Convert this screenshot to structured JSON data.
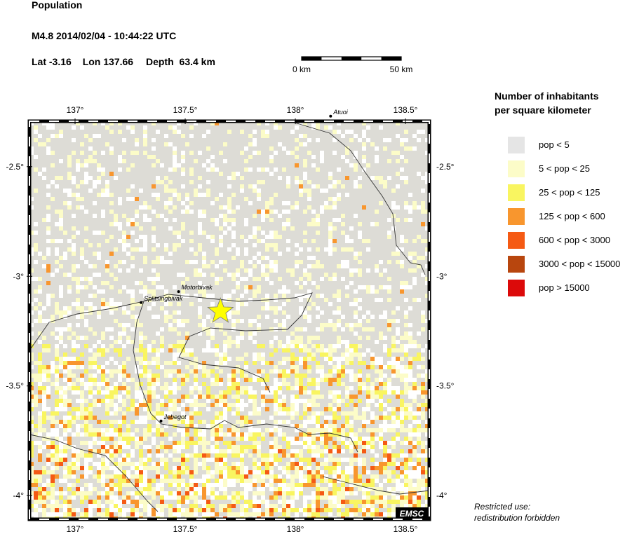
{
  "header": {
    "title": "Population",
    "event_line": "M4.8  2014/02/04 - 10:44:22 UTC"
  },
  "event": {
    "lat_label": "Lat",
    "lat": -3.16,
    "lon_label": "Lon",
    "lon": 137.66,
    "depth_label": "Depth",
    "depth": 63.4,
    "depth_unit": "km"
  },
  "scale_bar": {
    "start_label": "0 km",
    "end_label": "50 km"
  },
  "map": {
    "xlim": [
      136.793,
      138.608
    ],
    "ylim": [
      -4.108,
      -2.293
    ],
    "xticks": [
      {
        "value": 137,
        "label": "137°"
      },
      {
        "value": 137.5,
        "label": "137.5°"
      },
      {
        "value": 138,
        "label": "138°"
      },
      {
        "value": 138.5,
        "label": "138.5°"
      }
    ],
    "yticks": [
      {
        "value": -2.5,
        "label": "-2.5°"
      },
      {
        "value": -3,
        "label": "-3°"
      },
      {
        "value": -3.5,
        "label": "-3.5°"
      },
      {
        "value": -4,
        "label": "-4°"
      }
    ],
    "cities": [
      {
        "name": "Atuoi",
        "lon": 138.16,
        "lat": -2.27
      },
      {
        "name": "Motorbivak",
        "lon": 137.47,
        "lat": -3.07
      },
      {
        "name": "Splitsingbivak",
        "lon": 137.3,
        "lat": -3.12
      },
      {
        "name": "Jebegot",
        "lon": 137.39,
        "lat": -3.66
      }
    ],
    "badge": "EMSC"
  },
  "legend": {
    "title_lines": [
      "Number of inhabitants",
      "per square kilometer"
    ],
    "items": [
      {
        "label": "pop < 5",
        "color": "#e5e5e5"
      },
      {
        "label": "5 < pop < 25",
        "color": "#fcfcc8"
      },
      {
        "label": "25 < pop < 125",
        "color": "#f9f560"
      },
      {
        "label": "125 < pop < 600",
        "color": "#f8962e"
      },
      {
        "label": "600 < pop < 3000",
        "color": "#f55a14"
      },
      {
        "label": "3000 < pop < 15000",
        "color": "#b8460e"
      },
      {
        "label": "pop > 15000",
        "color": "#dc0a0a"
      }
    ]
  },
  "notes": [
    "Restricted use:",
    "redistribution forbidden"
  ]
}
